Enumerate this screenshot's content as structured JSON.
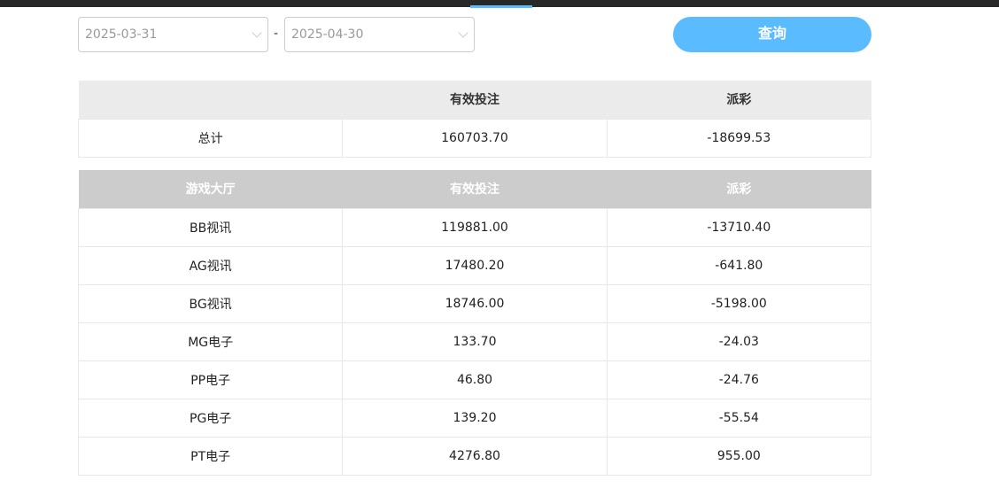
{
  "filters": {
    "start_date": "2025-03-31",
    "end_date": "2025-04-30",
    "separator": "-",
    "query_label": "查询"
  },
  "summary": {
    "headers": [
      "",
      "有效投注",
      "派彩"
    ],
    "row": [
      "总计",
      "160703.70",
      "-18699.53"
    ]
  },
  "detail": {
    "headers": [
      "游戏大厅",
      "有效投注",
      "派彩"
    ],
    "rows": [
      [
        "BB视讯",
        "119881.00",
        "-13710.40"
      ],
      [
        "AG视讯",
        "17480.20",
        "-641.80"
      ],
      [
        "BG视讯",
        "18746.00",
        "-5198.00"
      ],
      [
        "MG电子",
        "133.70",
        "-24.03"
      ],
      [
        "PP电子",
        "46.80",
        "-24.76"
      ],
      [
        "PG电子",
        "139.20",
        "-55.54"
      ],
      [
        "PT电子",
        "4276.80",
        "955.00"
      ]
    ]
  },
  "colors": {
    "accent": "#5bbbff",
    "topbar": "#282828"
  }
}
